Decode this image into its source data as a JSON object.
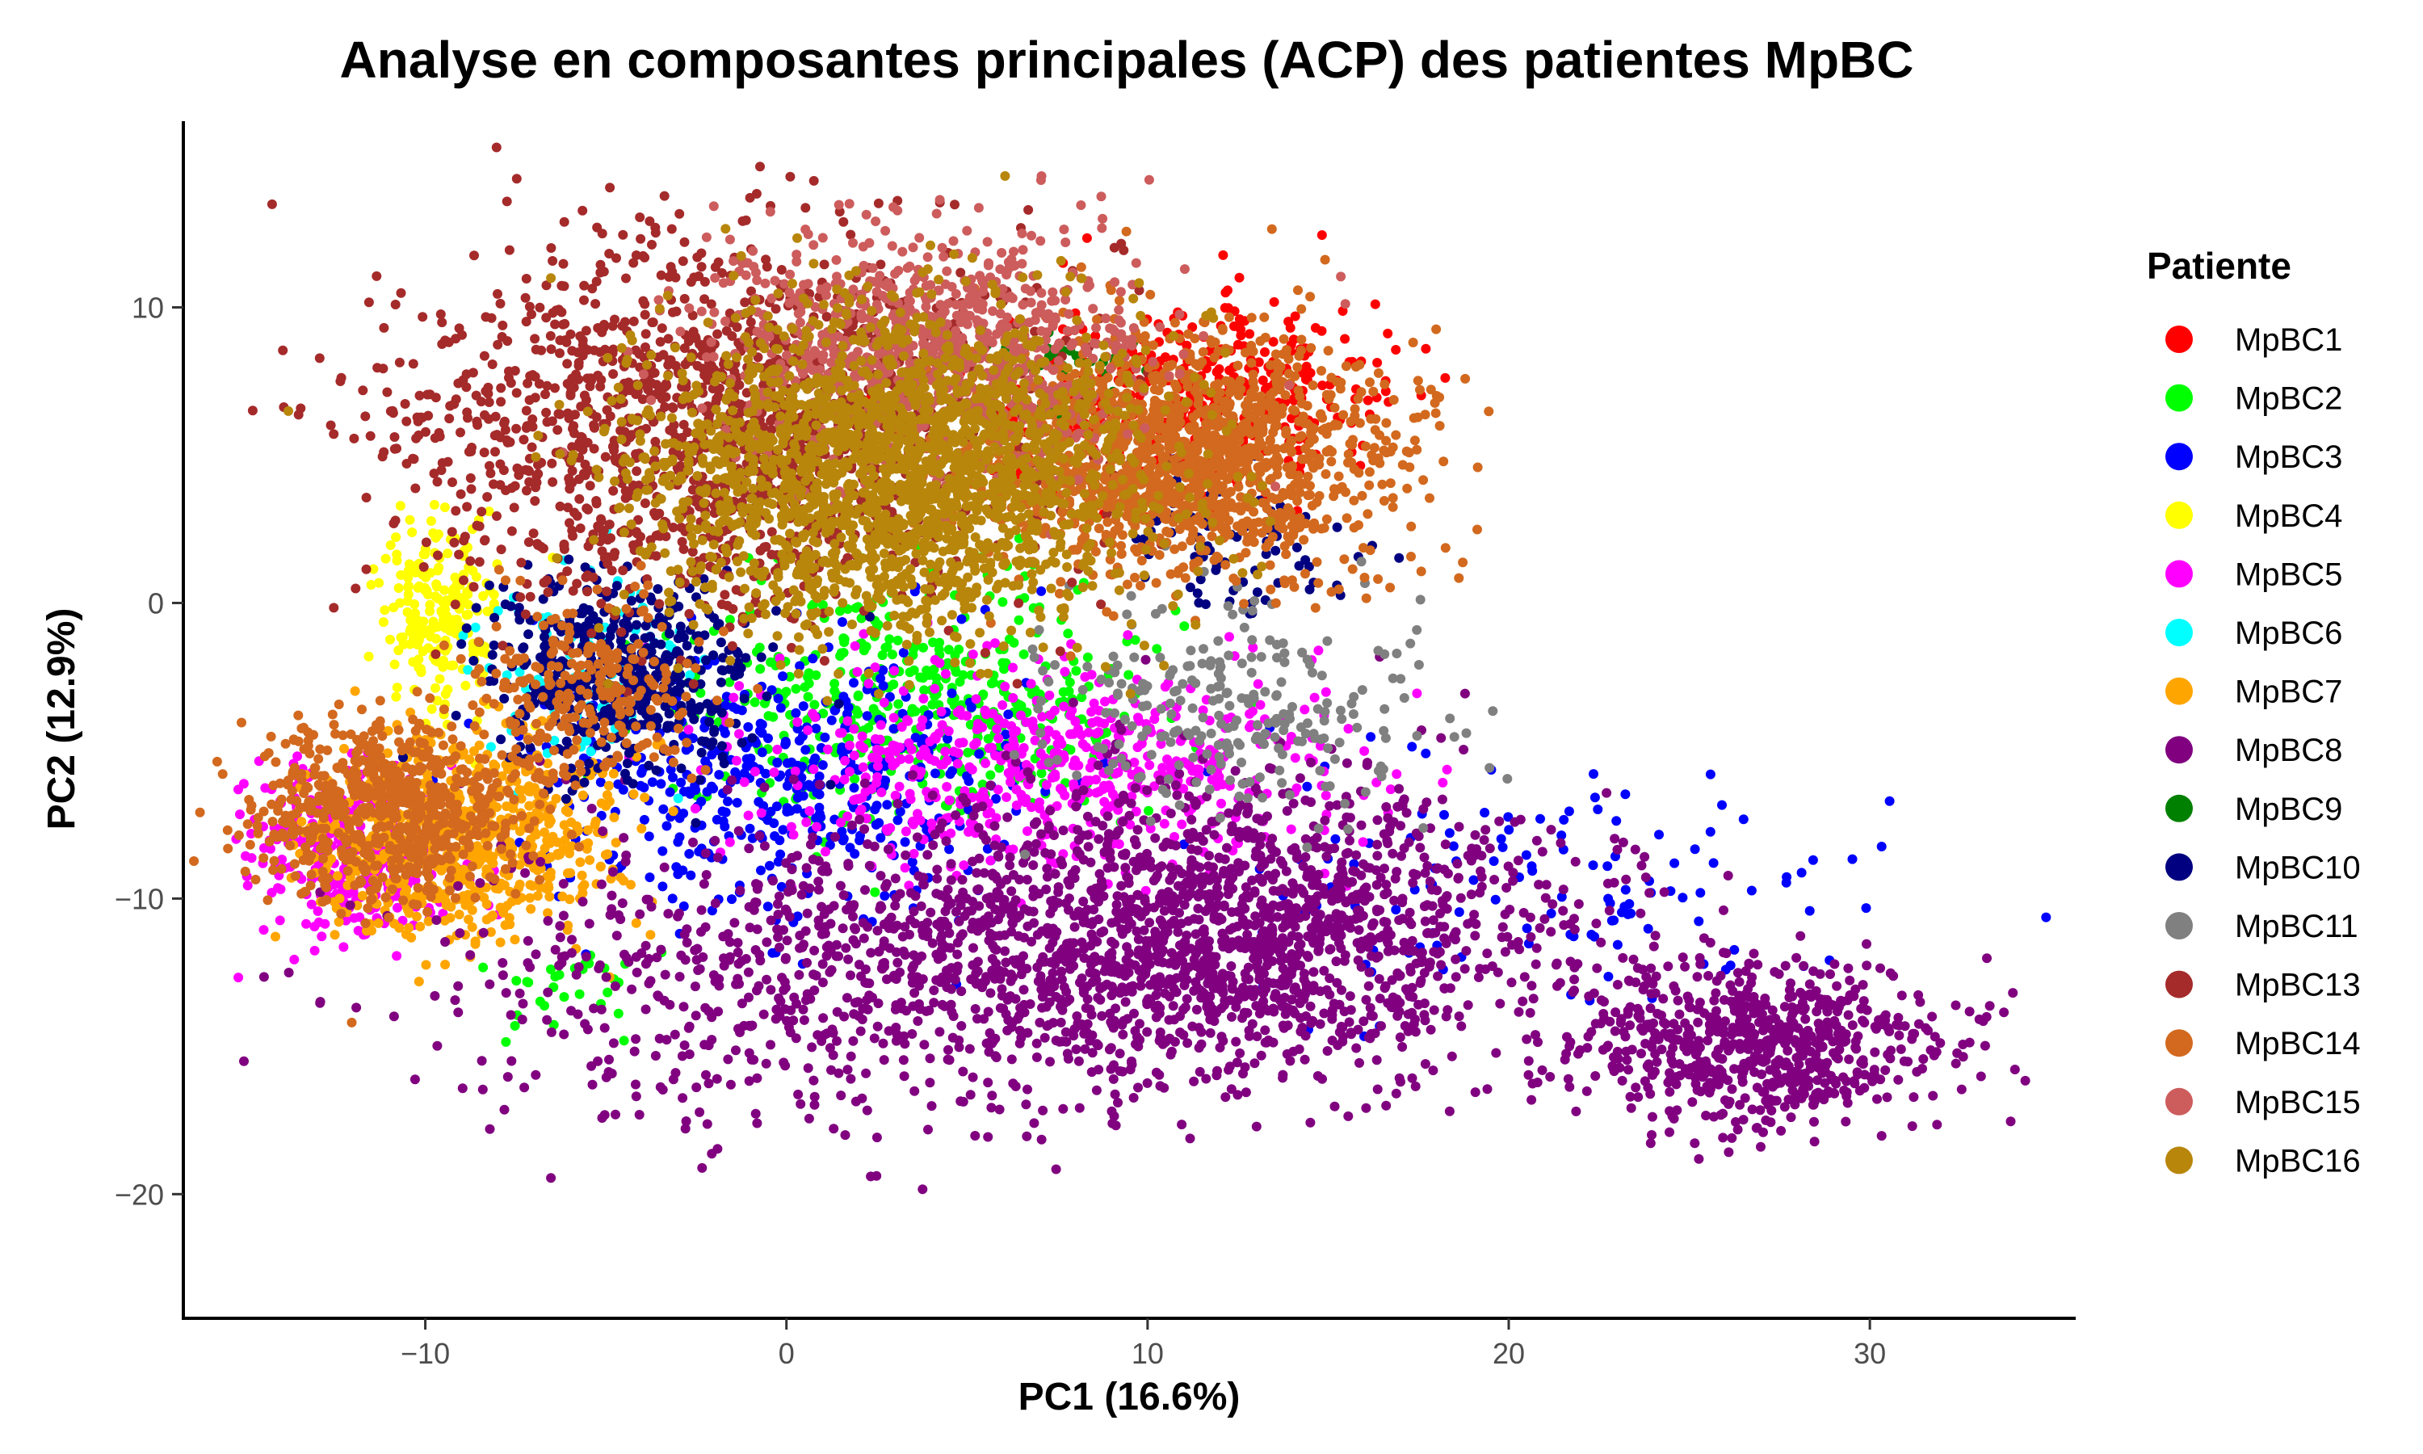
{
  "chart_data": {
    "type": "scatter",
    "title": "Analyse en composantes principales (ACP) des patientes MpBC",
    "xlabel": "PC1 (16.6%)",
    "ylabel": "PC2 (12.9%)",
    "xlim": [
      -16.7,
      35.7
    ],
    "ylim": [
      -24.2,
      16.3
    ],
    "xticks": [
      -10,
      0,
      10,
      20,
      30
    ],
    "xtick_labels": [
      "−10",
      "0",
      "10",
      "20",
      "30"
    ],
    "yticks": [
      -20,
      -10,
      0,
      10
    ],
    "ytick_labels": [
      "−20",
      "−10",
      "0",
      "10"
    ],
    "grid": false,
    "legend_title": "Patiente",
    "legend_position": "right",
    "series": [
      {
        "name": "MpBC1",
        "color": "#FF0000",
        "clusters": [
          {
            "cx": 11.5,
            "cy": 7.0,
            "sx": 2.5,
            "sy": 1.6,
            "n": 380
          }
        ]
      },
      {
        "name": "MpBC2",
        "color": "#00FF00",
        "clusters": [
          {
            "cx": 3.5,
            "cy": -3.5,
            "sx": 3.0,
            "sy": 2.0,
            "n": 450
          },
          {
            "cx": -6.0,
            "cy": -13.0,
            "sx": 1.5,
            "sy": 1.0,
            "n": 30
          }
        ]
      },
      {
        "name": "MpBC3",
        "color": "#0000FF",
        "clusters": [
          {
            "cx": 0.0,
            "cy": -6.0,
            "sx": 3.5,
            "sy": 2.2,
            "n": 450
          },
          {
            "cx": 20.0,
            "cy": -9.5,
            "sx": 4.5,
            "sy": 2.0,
            "n": 130
          }
        ]
      },
      {
        "name": "MpBC4",
        "color": "#FFFF00",
        "clusters": [
          {
            "cx": -9.5,
            "cy": -0.5,
            "sx": 0.8,
            "sy": 1.6,
            "n": 220
          }
        ]
      },
      {
        "name": "MpBC5",
        "color": "#FF00FF",
        "clusters": [
          {
            "cx": -12.0,
            "cy": -8.5,
            "sx": 1.4,
            "sy": 1.5,
            "n": 300
          },
          {
            "cx": 7.0,
            "cy": -5.5,
            "sx": 4.0,
            "sy": 1.6,
            "n": 600
          }
        ]
      },
      {
        "name": "MpBC6",
        "color": "#00FFFF",
        "clusters": [
          {
            "cx": -5.5,
            "cy": -2.0,
            "sx": 1.5,
            "sy": 1.8,
            "n": 90
          }
        ]
      },
      {
        "name": "MpBC7",
        "color": "#FFA500",
        "clusters": [
          {
            "cx": -9.0,
            "cy": -8.0,
            "sx": 2.2,
            "sy": 1.6,
            "n": 700
          }
        ]
      },
      {
        "name": "MpBC8",
        "color": "#800080",
        "clusters": [
          {
            "cx": 12.5,
            "cy": -11.0,
            "sx": 4.5,
            "sy": 2.4,
            "n": 1500
          },
          {
            "cx": 27.0,
            "cy": -15.0,
            "sx": 2.5,
            "sy": 1.4,
            "n": 700
          },
          {
            "cx": 3.0,
            "cy": -12.5,
            "sx": 6.0,
            "sy": 2.6,
            "n": 900
          }
        ]
      },
      {
        "name": "MpBC9",
        "color": "#008000",
        "clusters": [
          {
            "cx": 7.5,
            "cy": 8.0,
            "sx": 1.2,
            "sy": 0.8,
            "n": 40
          }
        ]
      },
      {
        "name": "MpBC10",
        "color": "#000080",
        "clusters": [
          {
            "cx": -4.5,
            "cy": -2.5,
            "sx": 1.8,
            "sy": 1.6,
            "n": 500
          },
          {
            "cx": 12.5,
            "cy": 2.0,
            "sx": 1.6,
            "sy": 1.3,
            "n": 80
          }
        ]
      },
      {
        "name": "MpBC11",
        "color": "#808080",
        "clusters": [
          {
            "cx": 12.5,
            "cy": -3.5,
            "sx": 2.6,
            "sy": 1.8,
            "n": 260
          }
        ]
      },
      {
        "name": "MpBC13",
        "color": "#A52A2A",
        "clusters": [
          {
            "cx": -2.0,
            "cy": 6.0,
            "sx": 4.5,
            "sy": 3.0,
            "n": 1600
          }
        ]
      },
      {
        "name": "MpBC14",
        "color": "#D2691E",
        "clusters": [
          {
            "cx": 11.0,
            "cy": 5.0,
            "sx": 2.8,
            "sy": 2.0,
            "n": 1400
          },
          {
            "cx": -11.0,
            "cy": -7.0,
            "sx": 1.8,
            "sy": 1.5,
            "n": 700
          },
          {
            "cx": -5.5,
            "cy": -3.0,
            "sx": 1.5,
            "sy": 1.5,
            "n": 250
          }
        ]
      },
      {
        "name": "MpBC15",
        "color": "#CD5C5C",
        "clusters": [
          {
            "cx": 4.0,
            "cy": 8.5,
            "sx": 3.0,
            "sy": 2.0,
            "n": 900
          }
        ]
      },
      {
        "name": "MpBC16",
        "color": "#B8860B",
        "clusters": [
          {
            "cx": 3.0,
            "cy": 4.5,
            "sx": 3.5,
            "sy": 2.6,
            "n": 2200
          }
        ]
      }
    ]
  }
}
